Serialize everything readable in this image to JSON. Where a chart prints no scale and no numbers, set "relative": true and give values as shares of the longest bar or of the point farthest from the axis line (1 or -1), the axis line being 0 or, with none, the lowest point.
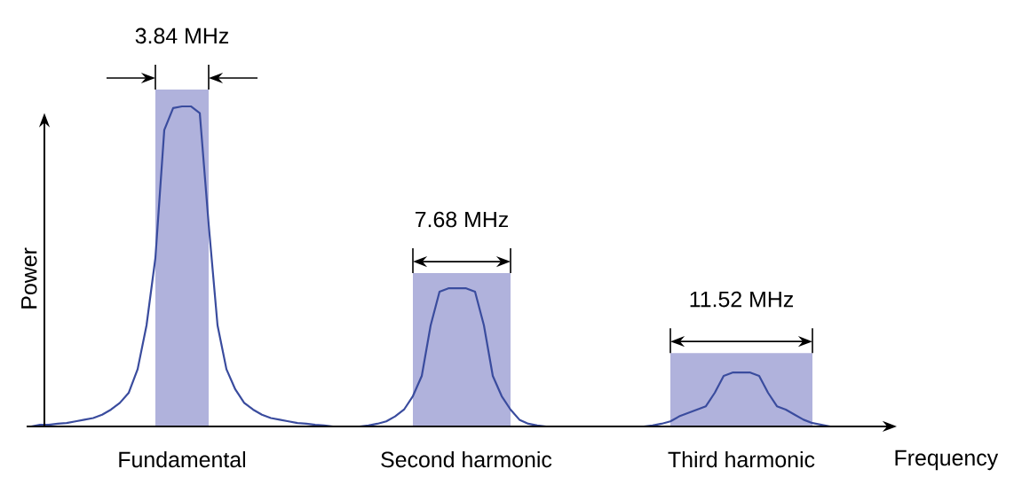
{
  "chart_data": {
    "type": "line",
    "relative": true,
    "xlabel": "Frequency",
    "ylabel": "Power",
    "tick_labels": "x",
    "categories": [
      null,
      null,
      null,
      null,
      null,
      null,
      null,
      null,
      null,
      null,
      null,
      null,
      null,
      null,
      null,
      null,
      null,
      "Fundamental",
      null,
      null,
      null,
      null,
      null,
      null,
      null,
      null,
      null,
      null,
      null,
      null,
      null,
      null,
      null,
      null,
      null,
      null,
      null,
      null,
      null,
      null,
      null,
      null,
      null,
      null,
      null,
      null,
      null,
      null,
      null,
      "Second harmonic",
      null,
      null,
      null,
      null,
      null,
      null,
      null,
      null,
      null,
      null,
      null,
      null,
      null,
      null,
      null,
      null,
      null,
      null,
      null,
      null,
      null,
      null,
      null,
      null,
      null,
      null,
      null,
      null,
      null,
      null,
      "Third harmonic",
      null,
      null,
      null,
      null,
      null,
      null,
      null,
      null,
      null,
      null,
      null,
      null
    ],
    "series": [
      {
        "type": "area",
        "color": "#b0b2dc",
        "values": [
          null,
          null,
          null,
          null,
          null,
          null,
          null,
          null,
          null,
          null,
          null,
          null,
          null,
          null,
          1,
          1,
          1,
          1,
          1,
          1,
          1,
          null,
          null,
          null,
          null,
          null,
          null,
          null,
          null,
          null,
          null,
          null,
          null,
          null,
          null,
          null,
          null,
          null,
          null,
          null,
          null,
          null,
          null,
          null,
          null,
          null,
          null,
          null,
          null,
          null,
          null,
          null,
          null,
          null,
          null,
          null,
          null,
          null,
          null,
          null,
          null,
          null,
          null,
          null,
          null,
          null,
          null,
          null,
          null,
          null,
          null,
          null,
          null,
          null,
          null,
          null,
          null,
          null,
          null,
          null,
          null,
          null,
          null,
          null,
          null,
          null,
          null,
          null,
          null,
          null,
          null,
          null,
          null
        ]
      },
      {
        "type": "area",
        "color": "#b0b2dc",
        "values": [
          null,
          null,
          null,
          null,
          null,
          null,
          null,
          null,
          null,
          null,
          null,
          null,
          null,
          null,
          null,
          null,
          null,
          null,
          null,
          null,
          null,
          null,
          null,
          null,
          null,
          null,
          null,
          null,
          null,
          null,
          null,
          null,
          null,
          null,
          null,
          null,
          null,
          null,
          null,
          null,
          null,
          null,
          null,
          0.455,
          0.455,
          0.455,
          0.455,
          0.455,
          0.455,
          0.455,
          0.455,
          0.455,
          0.455,
          0.455,
          0.455,
          null,
          null,
          null,
          null,
          null,
          null,
          null,
          null,
          null,
          null,
          null,
          null,
          null,
          null,
          null,
          null,
          null,
          null,
          null,
          null,
          null,
          null,
          null,
          null,
          null,
          null,
          null,
          null,
          null,
          null,
          null,
          null,
          null,
          null,
          null,
          null,
          null,
          null
        ]
      },
      {
        "type": "area",
        "color": "#b0b2dc",
        "values": [
          null,
          null,
          null,
          null,
          null,
          null,
          null,
          null,
          null,
          null,
          null,
          null,
          null,
          null,
          null,
          null,
          null,
          null,
          null,
          null,
          null,
          null,
          null,
          null,
          null,
          null,
          null,
          null,
          null,
          null,
          null,
          null,
          null,
          null,
          null,
          null,
          null,
          null,
          null,
          null,
          null,
          null,
          null,
          null,
          null,
          null,
          null,
          null,
          null,
          null,
          null,
          null,
          null,
          null,
          null,
          null,
          null,
          null,
          null,
          null,
          null,
          null,
          null,
          null,
          null,
          null,
          null,
          null,
          null,
          null,
          null,
          null,
          0.218,
          0.218,
          0.218,
          0.218,
          0.218,
          0.218,
          0.218,
          0.218,
          0.218,
          0.218,
          0.218,
          0.218,
          0.218,
          0.218,
          0.218,
          0.218,
          0.218,
          null,
          null,
          null,
          null
        ]
      },
      {
        "type": "line",
        "color": "#3a4c9e",
        "values": [
          0,
          0.005,
          0.005,
          0.008,
          0.01,
          0.015,
          0.02,
          0.025,
          0.035,
          0.05,
          0.07,
          0.1,
          0.17,
          0.3,
          0.5,
          0.88,
          0.945,
          0.95,
          0.95,
          0.93,
          0.6,
          0.3,
          0.17,
          0.11,
          0.07,
          0.05,
          0.035,
          0.025,
          0.02,
          0.015,
          0.01,
          0.008,
          0.005,
          0.003,
          0,
          0,
          0,
          0,
          0.003,
          0.008,
          0.015,
          0.03,
          0.05,
          0.09,
          0.15,
          0.3,
          0.4,
          0.41,
          0.41,
          0.41,
          0.4,
          0.3,
          0.15,
          0.09,
          0.05,
          0.02,
          0.008,
          0.003,
          0,
          0,
          0,
          0,
          0,
          0,
          0,
          0,
          0,
          0,
          0,
          0,
          0.003,
          0.008,
          0.015,
          0.03,
          0.04,
          0.05,
          0.06,
          0.1,
          0.15,
          0.16,
          0.16,
          0.16,
          0.15,
          0.1,
          0.06,
          0.05,
          0.035,
          0.02,
          0.01,
          0.005,
          0,
          0,
          0
        ]
      }
    ],
    "annotations": [
      "3.84 MHz",
      "7.68 MHz",
      "11.52 MHz"
    ]
  }
}
